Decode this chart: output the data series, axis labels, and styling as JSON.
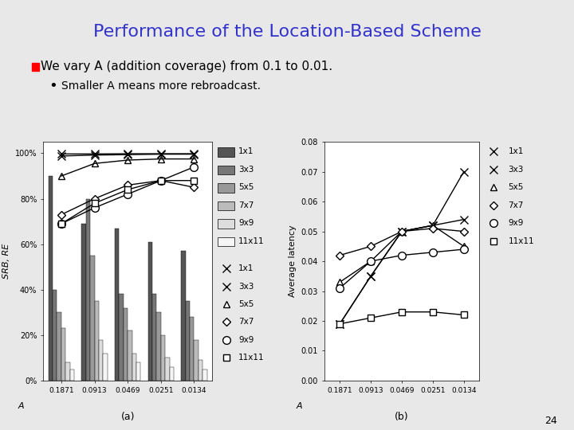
{
  "title": "Performance of the Location-Based Scheme",
  "title_color": "#3333cc",
  "bullet1": "We vary A (addition coverage) from 0.1 to 0.01.",
  "bullet2": "Smaller A means more rebroadcast.",
  "x_labels": [
    "0.1871",
    "0.0913",
    "0.0469",
    "0.0251",
    "0.0134"
  ],
  "x_positions": [
    0,
    1,
    2,
    3,
    4
  ],
  "bar_groups": {
    "1x1": [
      0.9,
      0.69,
      0.67,
      0.61,
      0.57
    ],
    "3x3": [
      0.4,
      0.8,
      0.38,
      0.38,
      0.35
    ],
    "5x5": [
      0.3,
      0.55,
      0.32,
      0.3,
      0.28
    ],
    "7x7": [
      0.23,
      0.35,
      0.22,
      0.2,
      0.18
    ],
    "9x9": [
      0.08,
      0.18,
      0.12,
      0.1,
      0.09
    ],
    "11x11": [
      0.05,
      0.12,
      0.08,
      0.06,
      0.05
    ]
  },
  "bar_colors": {
    "1x1": "#555555",
    "3x3": "#777777",
    "5x5": "#999999",
    "7x7": "#bbbbbb",
    "9x9": "#dddddd",
    "11x11": "#f5f5f5"
  },
  "line_a_data": {
    "1x1": [
      0.997,
      0.997,
      0.998,
      0.998,
      0.998
    ],
    "3x3": [
      0.988,
      0.992,
      0.994,
      0.996,
      0.996
    ],
    "5x5": [
      0.9,
      0.955,
      0.97,
      0.975,
      0.975
    ],
    "7x7": [
      0.73,
      0.8,
      0.86,
      0.88,
      0.85
    ],
    "9x9": [
      0.69,
      0.76,
      0.82,
      0.88,
      0.94
    ],
    "11x11": [
      0.69,
      0.78,
      0.84,
      0.88,
      0.88
    ]
  },
  "line_b_data": {
    "1x1": [
      0.019,
      0.035,
      0.05,
      0.052,
      0.07
    ],
    "3x3": [
      0.019,
      0.035,
      0.05,
      0.052,
      0.054
    ],
    "5x5": [
      0.033,
      0.04,
      0.05,
      0.052,
      0.045
    ],
    "7x7": [
      0.042,
      0.045,
      0.05,
      0.051,
      0.05
    ],
    "9x9": [
      0.031,
      0.04,
      0.042,
      0.043,
      0.044
    ],
    "11x11": [
      0.019,
      0.021,
      0.023,
      0.023,
      0.022
    ]
  },
  "line_markers": {
    "1x1": "x",
    "3x3": "x",
    "5x5": "^",
    "7x7": "D",
    "9x9": "o",
    "11x11": "s"
  },
  "line_markersizes": {
    "1x1": 7,
    "3x3": 7,
    "5x5": 6,
    "7x7": 5,
    "9x9": 7,
    "11x11": 6
  },
  "slide_bg": "#e8e8e8",
  "ylabel_a": "SRB, RE",
  "ylabel_b": "Average latency",
  "xlabel": "A",
  "subtitle_a": "(a)",
  "subtitle_b": "(b)",
  "ylim_a": [
    0.0,
    1.05
  ],
  "yticks_a": [
    0.0,
    0.2,
    0.4,
    0.6,
    0.8,
    1.0
  ],
  "ytick_labels_a": [
    "0%",
    "20%",
    "40%",
    "60%",
    "80%",
    "100%"
  ],
  "ylim_b": [
    0.0,
    0.08
  ],
  "yticks_b": [
    0.0,
    0.01,
    0.02,
    0.03,
    0.04,
    0.05,
    0.06,
    0.07,
    0.08
  ],
  "page_number": "24",
  "series_order": [
    "1x1",
    "3x3",
    "5x5",
    "7x7",
    "9x9",
    "11x11"
  ]
}
